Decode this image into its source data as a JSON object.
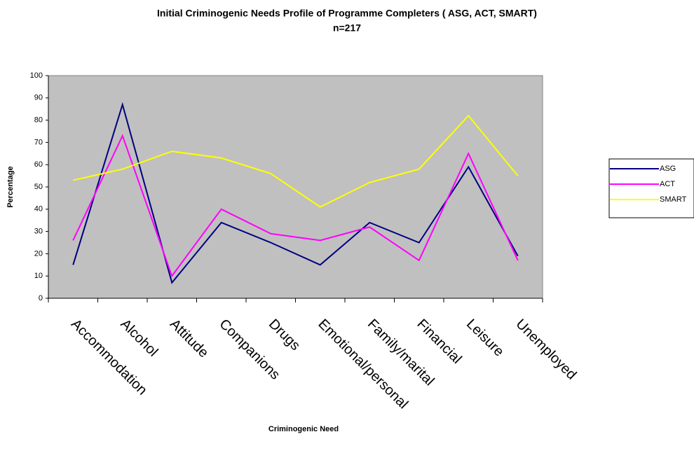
{
  "chart_data": {
    "type": "line",
    "title": "Initial Criminogenic Needs Profile of Programme Completers ( ASG, ACT, SMART)",
    "subtitle": "n=217",
    "x_label": "Criminogenic Need",
    "y_label": "Percentage",
    "categories": [
      "Accommodation",
      "Alcohol",
      "Attitude",
      "Companions",
      "Drugs",
      "Emotional/personal",
      "Family/marital",
      "Financial",
      "Leisure",
      "Unemployed"
    ],
    "series": [
      {
        "name": "ASG",
        "color": "#000080",
        "values": [
          15,
          87,
          7,
          34,
          25,
          15,
          34,
          25,
          59,
          19
        ]
      },
      {
        "name": "ACT",
        "color": "#ff00ff",
        "values": [
          26,
          73,
          10,
          40,
          29,
          26,
          32,
          17,
          65,
          17
        ]
      },
      {
        "name": "SMART",
        "color": "#ffff00",
        "values": [
          53,
          58,
          66,
          63,
          56,
          41,
          52,
          58,
          82,
          55
        ]
      }
    ],
    "ylim": [
      0,
      100
    ],
    "yticks": [
      0,
      10,
      20,
      30,
      40,
      50,
      60,
      70,
      80,
      90,
      100
    ],
    "grid": false,
    "legend": "right",
    "plot_background": "#c0c0c0"
  }
}
